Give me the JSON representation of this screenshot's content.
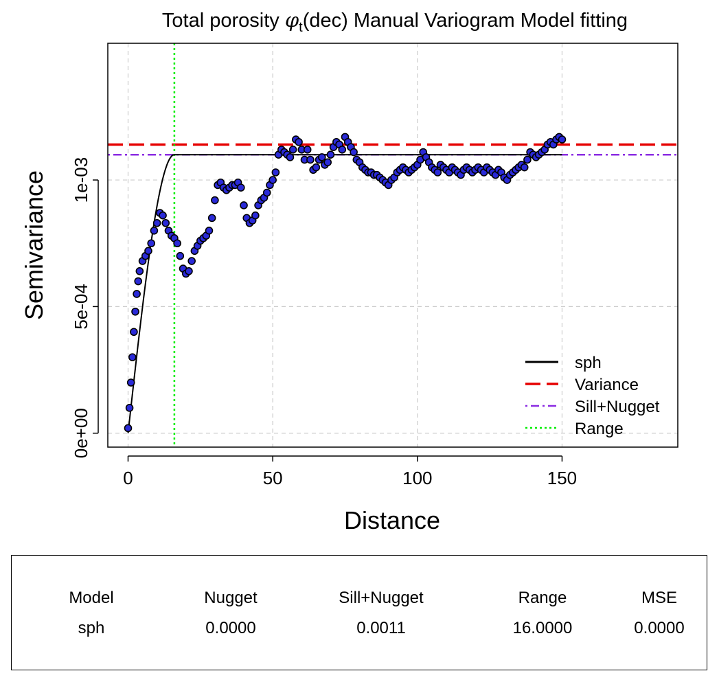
{
  "chart_data": {
    "type": "scatter",
    "title_prefix": "Total porosity ",
    "title_symbol": "φ",
    "title_subscript": "t",
    "title_suffix": "(dec) Manual Variogram Model fitting",
    "xlabel": "Distance",
    "ylabel": "Semivariance",
    "xlim": [
      -7,
      190
    ],
    "ylim": [
      -5.5e-05,
      0.00154
    ],
    "x_ticks": [
      0,
      50,
      100,
      150
    ],
    "x_tick_labels": [
      "0",
      "50",
      "100",
      "150"
    ],
    "y_ticks": [
      0,
      0.0005,
      0.001
    ],
    "y_tick_labels": [
      "0e+00",
      "5e-04",
      "1e-03"
    ],
    "grid": true,
    "model": {
      "type": "sph",
      "nugget": 0.0,
      "sill_plus_nugget": 0.0011,
      "range": 16.0
    },
    "variance": 0.00114,
    "legend_position": "bottom-right",
    "legend": [
      {
        "label": "sph",
        "color": "#000000",
        "style": "solid"
      },
      {
        "label": "Variance",
        "color": "#e60000",
        "style": "dashed"
      },
      {
        "label": "Sill+Nugget",
        "color": "#8a2be2",
        "style": "dotdash"
      },
      {
        "label": "Range",
        "color": "#00ee00",
        "style": "dotted"
      }
    ],
    "series": [
      {
        "name": "empirical semivariance",
        "marker_color": "#2a2ad8",
        "x": [
          0,
          0.5,
          1,
          1.5,
          2,
          2.5,
          3,
          3.5,
          4,
          5,
          6,
          7,
          8,
          9,
          10,
          11,
          12,
          13,
          14,
          15,
          16,
          17,
          18,
          19,
          20,
          21,
          22,
          23,
          24,
          25,
          26,
          27,
          28,
          29,
          30,
          31,
          32,
          33,
          34,
          35,
          36,
          37,
          38,
          39,
          40,
          41,
          42,
          43,
          44,
          45,
          46,
          47,
          48,
          49,
          50,
          51,
          52,
          53,
          54,
          55,
          56,
          57,
          58,
          59,
          60,
          61,
          62,
          63,
          64,
          65,
          66,
          67,
          68,
          69,
          70,
          71,
          72,
          73,
          74,
          75,
          76,
          77,
          78,
          79,
          80,
          81,
          82,
          83,
          84,
          85,
          86,
          87,
          88,
          89,
          90,
          91,
          92,
          93,
          94,
          95,
          96,
          97,
          98,
          99,
          100,
          101,
          102,
          103,
          104,
          105,
          106,
          107,
          108,
          109,
          110,
          111,
          112,
          113,
          114,
          115,
          116,
          117,
          118,
          119,
          120,
          121,
          122,
          123,
          124,
          125,
          126,
          127,
          128,
          129,
          130,
          131,
          132,
          133,
          134,
          135,
          136,
          137,
          138,
          139,
          140,
          141,
          142,
          143,
          144,
          145,
          146,
          147,
          148,
          149,
          150
        ],
        "y": [
          2e-05,
          0.0001,
          0.0002,
          0.0003,
          0.0004,
          0.00048,
          0.00055,
          0.0006,
          0.00064,
          0.00068,
          0.0007,
          0.00072,
          0.00075,
          0.0008,
          0.00083,
          0.00087,
          0.00086,
          0.00083,
          0.0008,
          0.00078,
          0.00077,
          0.00075,
          0.0007,
          0.00065,
          0.00063,
          0.00064,
          0.00068,
          0.00072,
          0.00074,
          0.00076,
          0.00077,
          0.00078,
          0.0008,
          0.00085,
          0.00092,
          0.00098,
          0.00099,
          0.00097,
          0.00096,
          0.00097,
          0.00098,
          0.00098,
          0.00099,
          0.00097,
          0.0009,
          0.00085,
          0.00083,
          0.00084,
          0.00086,
          0.0009,
          0.00092,
          0.00093,
          0.00095,
          0.00098,
          0.001,
          0.00103,
          0.0011,
          0.00112,
          0.00111,
          0.0011,
          0.00109,
          0.00112,
          0.00116,
          0.00115,
          0.00112,
          0.00108,
          0.00112,
          0.00108,
          0.00104,
          0.00105,
          0.00108,
          0.00109,
          0.00106,
          0.00107,
          0.0011,
          0.00113,
          0.00115,
          0.00114,
          0.00112,
          0.00117,
          0.00115,
          0.00113,
          0.00111,
          0.00108,
          0.00107,
          0.00105,
          0.00104,
          0.00103,
          0.00103,
          0.00102,
          0.00102,
          0.00101,
          0.001,
          0.00099,
          0.00098,
          0.001,
          0.00101,
          0.00103,
          0.00104,
          0.00105,
          0.00104,
          0.00103,
          0.00104,
          0.00105,
          0.00106,
          0.00108,
          0.00111,
          0.00109,
          0.00107,
          0.00105,
          0.00104,
          0.00103,
          0.00106,
          0.00105,
          0.00104,
          0.00103,
          0.00105,
          0.00104,
          0.00103,
          0.00102,
          0.00104,
          0.00105,
          0.00104,
          0.00103,
          0.00104,
          0.00105,
          0.00104,
          0.00103,
          0.00105,
          0.00104,
          0.00103,
          0.00102,
          0.00104,
          0.00103,
          0.00101,
          0.001,
          0.00102,
          0.00103,
          0.00104,
          0.00105,
          0.00106,
          0.00105,
          0.00108,
          0.00111,
          0.0011,
          0.00109,
          0.0011,
          0.00111,
          0.00112,
          0.00114,
          0.00115,
          0.00114,
          0.00116,
          0.00117,
          0.00116
        ]
      }
    ]
  },
  "stats": {
    "headers": {
      "model": "Model",
      "nugget": "Nugget",
      "sill": "Sill+Nugget",
      "range": "Range",
      "mse": "MSE"
    },
    "values": {
      "model": "sph",
      "nugget": "0.0000",
      "sill": "0.0011",
      "range": "16.0000",
      "mse": "0.0000"
    }
  }
}
